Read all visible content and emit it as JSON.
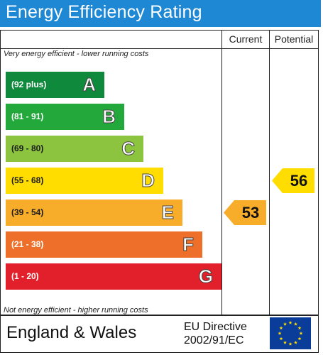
{
  "header": {
    "title": "Energy Efficiency Rating"
  },
  "columns": {
    "current": "Current",
    "potential": "Potential"
  },
  "notes": {
    "top": "Very energy efficient - lower running costs",
    "bottom": "Not energy efficient - higher running costs"
  },
  "bands": [
    {
      "range": "(92 plus)",
      "letter": "A",
      "color": "#0f8a3c"
    },
    {
      "range": "(81 - 91)",
      "letter": "B",
      "color": "#23a83b"
    },
    {
      "range": "(69 - 80)",
      "letter": "C",
      "color": "#8cc43f"
    },
    {
      "range": "(55 - 68)",
      "letter": "D",
      "color": "#ffdd00"
    },
    {
      "range": "(39 - 54)",
      "letter": "E",
      "color": "#f7ac2a"
    },
    {
      "range": "(21 - 38)",
      "letter": "F",
      "color": "#ee6f2a"
    },
    {
      "range": "(1 - 20)",
      "letter": "G",
      "color": "#e2202b"
    }
  ],
  "ratings": {
    "current": {
      "value": "53",
      "color": "#f7ac2a"
    },
    "potential": {
      "value": "56",
      "color": "#ffdd00"
    }
  },
  "footer": {
    "region": "England & Wales",
    "directive_line1": "EU Directive",
    "directive_line2": "2002/91/EC"
  }
}
